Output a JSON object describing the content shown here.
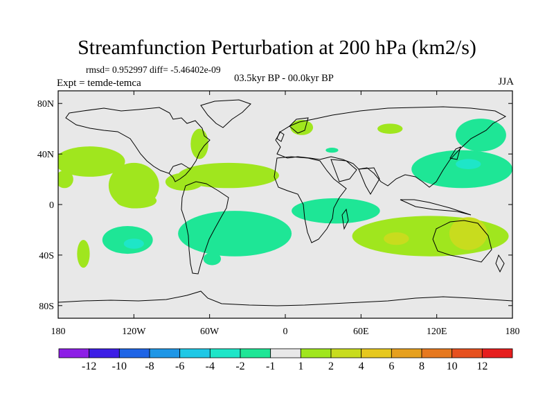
{
  "chart_data": {
    "type": "heatmap",
    "title": "Streamfunction Perturbation at 200 hPa (km2/s)",
    "stats_text": "rmsd= 0.952997  diff= -5.46402e-09",
    "period_text": "03.5kyr BP - 00.0kyr BP",
    "left_label": "Expt = temde-temca",
    "right_label": "JJA",
    "x_axis": {
      "range": [
        -180,
        180
      ],
      "ticks": [
        {
          "value": -180,
          "label": "180"
        },
        {
          "value": -120,
          "label": "120W"
        },
        {
          "value": -60,
          "label": "60W"
        },
        {
          "value": 0,
          "label": "0"
        },
        {
          "value": 60,
          "label": "60E"
        },
        {
          "value": 120,
          "label": "120E"
        },
        {
          "value": 180,
          "label": "180"
        }
      ]
    },
    "y_axis": {
      "range": [
        -90,
        90
      ],
      "ticks": [
        {
          "value": 80,
          "label": "80N"
        },
        {
          "value": 40,
          "label": "40N"
        },
        {
          "value": 0,
          "label": "0"
        },
        {
          "value": -40,
          "label": "40S"
        },
        {
          "value": -80,
          "label": "80S"
        }
      ]
    },
    "colorbar": {
      "colors": [
        "#8d1ee6",
        "#3c1ee6",
        "#1e64e6",
        "#1e96e6",
        "#1ec8e6",
        "#1ee6c8",
        "#1ee696",
        "#e8e8e8",
        "#a0e61e",
        "#c8dc1e",
        "#e6c81e",
        "#e6a01e",
        "#e6781e",
        "#e6501e",
        "#e61e1e"
      ],
      "labels": [
        "-12",
        "-10",
        "-8",
        "-6",
        "-4",
        "-2",
        "-1",
        "1",
        "2",
        "4",
        "6",
        "8",
        "10",
        "12"
      ]
    },
    "anomaly_regions": [
      {
        "name": "north-pacific-positive",
        "level": "1 to 2",
        "lon": -155,
        "lat": 34,
        "rlon": 28,
        "rlat": 12
      },
      {
        "name": "east-pacific-positive",
        "level": "1 to 2",
        "lon": -120,
        "lat": 15,
        "rlon": 20,
        "rlat": 18
      },
      {
        "name": "tropical-pacific-positive",
        "level": "1 to 2",
        "lon": -118,
        "lat": 3,
        "rlon": 16,
        "rlat": 6
      },
      {
        "name": "hawaii-positive",
        "level": "1 to 2",
        "lon": -175,
        "lat": 20,
        "rlon": 7,
        "rlat": 7
      },
      {
        "name": "tropical-atlantic-positive",
        "level": "1 to 2",
        "lon": -45,
        "lat": 23,
        "rlon": 40,
        "rlat": 10
      },
      {
        "name": "caribbean-positive",
        "level": "1 to 2",
        "lon": -80,
        "lat": 18,
        "rlon": 15,
        "rlat": 7
      },
      {
        "name": "north-america-positive",
        "level": "1 to 2",
        "lon": -68,
        "lat": 48,
        "rlon": 7,
        "rlat": 12
      },
      {
        "name": "scandinavia-positive",
        "level": "1 to 2",
        "lon": 13,
        "lat": 61,
        "rlon": 9,
        "rlat": 6
      },
      {
        "name": "siberia-positive",
        "level": "1 to 2",
        "lon": 83,
        "lat": 60,
        "rlon": 10,
        "rlat": 4
      },
      {
        "name": "black-sea-negative",
        "level": "-1 to -2",
        "lon": 37,
        "lat": 43,
        "rlon": 5,
        "rlat": 2
      },
      {
        "name": "southeast-pacific-positive",
        "level": "1 to 2",
        "lon": -160,
        "lat": -39,
        "rlon": 5,
        "rlat": 11
      },
      {
        "name": "south-america-negative",
        "level": "-1 to -2",
        "lon": -58,
        "lat": -43,
        "rlon": 7,
        "rlat": 5
      },
      {
        "name": "south-pacific-negative",
        "level": "-1 to -2",
        "lon": -125,
        "lat": -28,
        "rlon": 20,
        "rlat": 11
      },
      {
        "name": "south-pacific-core",
        "level": "-2 to -4",
        "lon": -120,
        "lat": -31,
        "rlon": 8,
        "rlat": 4
      },
      {
        "name": "south-atlantic-negative",
        "level": "-1 to -2",
        "lon": -40,
        "lat": -23,
        "rlon": 45,
        "rlat": 18
      },
      {
        "name": "indian-ocean-negative",
        "level": "-1 to -2",
        "lon": 40,
        "lat": -5,
        "rlon": 35,
        "rlat": 10
      },
      {
        "name": "south-indian-positive",
        "level": "1 to 2",
        "lon": 115,
        "lat": -25,
        "rlon": 62,
        "rlat": 16
      },
      {
        "name": "south-indian-core",
        "level": "2 to 4",
        "lon": 88,
        "lat": -27,
        "rlon": 10,
        "rlat": 5
      },
      {
        "name": "australia-core",
        "level": "2 to 4",
        "lon": 145,
        "lat": -23,
        "rlon": 15,
        "rlat": 13
      },
      {
        "name": "north-pacific-negative",
        "level": "-1 to -2",
        "lon": 140,
        "lat": 28,
        "rlon": 40,
        "rlat": 15
      },
      {
        "name": "northeast-pacific-negative",
        "level": "-1 to -2",
        "lon": 155,
        "lat": 55,
        "rlon": 20,
        "rlat": 13
      },
      {
        "name": "japan-core",
        "level": "-2 to -4",
        "lon": 145,
        "lat": 32,
        "rlon": 10,
        "rlat": 4
      }
    ]
  }
}
